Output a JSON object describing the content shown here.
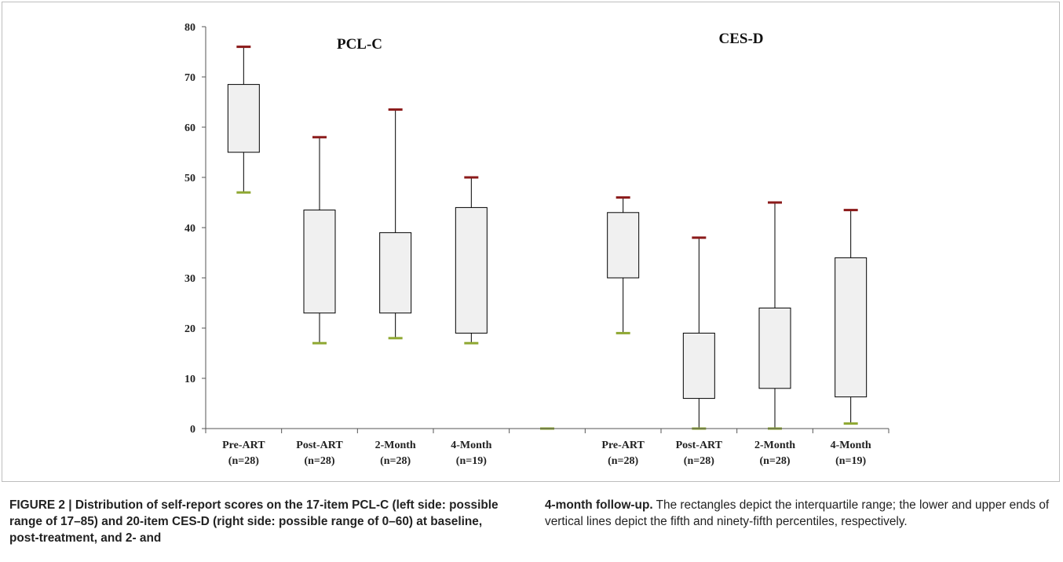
{
  "chart_data": {
    "type": "boxplot",
    "ylim": [
      0,
      80
    ],
    "yticks": [
      0,
      10,
      20,
      30,
      40,
      50,
      60,
      70,
      80
    ],
    "panel_titles": [
      "PCL-C",
      "CES-D"
    ],
    "slots": [
      {
        "label1": "Pre-ART",
        "label2": "(n=28)",
        "p5": 47,
        "q1": 55,
        "q3": 68.5,
        "p95": 76
      },
      {
        "label1": "Post-ART",
        "label2": "(n=28)",
        "p5": 17,
        "q1": 23,
        "q3": 43.5,
        "p95": 58
      },
      {
        "label1": "2-Month",
        "label2": "(n=28)",
        "p5": 18,
        "q1": 23,
        "q3": 39,
        "p95": 63.5
      },
      {
        "label1": "4-Month",
        "label2": "(n=19)",
        "p5": 17,
        "q1": 19,
        "q3": 44,
        "p95": 50
      },
      {
        "label1": "",
        "label2": "",
        "p5": 0,
        "q1": 0,
        "q3": 0,
        "p95": 0
      },
      {
        "label1": "Pre-ART",
        "label2": "(n=28)",
        "p5": 19,
        "q1": 30,
        "q3": 43,
        "p95": 46
      },
      {
        "label1": "Post-ART",
        "label2": "(n=28)",
        "p5": 0,
        "q1": 6,
        "q3": 19,
        "p95": 38
      },
      {
        "label1": "2-Month",
        "label2": "(n=28)",
        "p5": 0,
        "q1": 8,
        "q3": 24,
        "p95": 45
      },
      {
        "label1": "4-Month",
        "label2": "(n=19)",
        "p5": 1,
        "q1": 6.3,
        "q3": 34,
        "p95": 43.5
      }
    ],
    "colors": {
      "box_fill": "#f0f0f0",
      "upper_cap": "#8b1a1a",
      "lower_cap": "#8fa832",
      "line": "#000000"
    }
  },
  "caption": {
    "left_bold": "FIGURE 2 | Distribution of self-report scores on the 17-item PCL-C (left side: possible range of 17–85) and 20-item CES-D (right side: possible range of 0–60) at baseline, post-treatment, and 2- and",
    "right_bold": "4-month follow-up.",
    "right_text": " The rectangles depict the interquartile range; the lower and upper ends of vertical lines depict the fifth and ninety-fifth percentiles, respectively."
  }
}
